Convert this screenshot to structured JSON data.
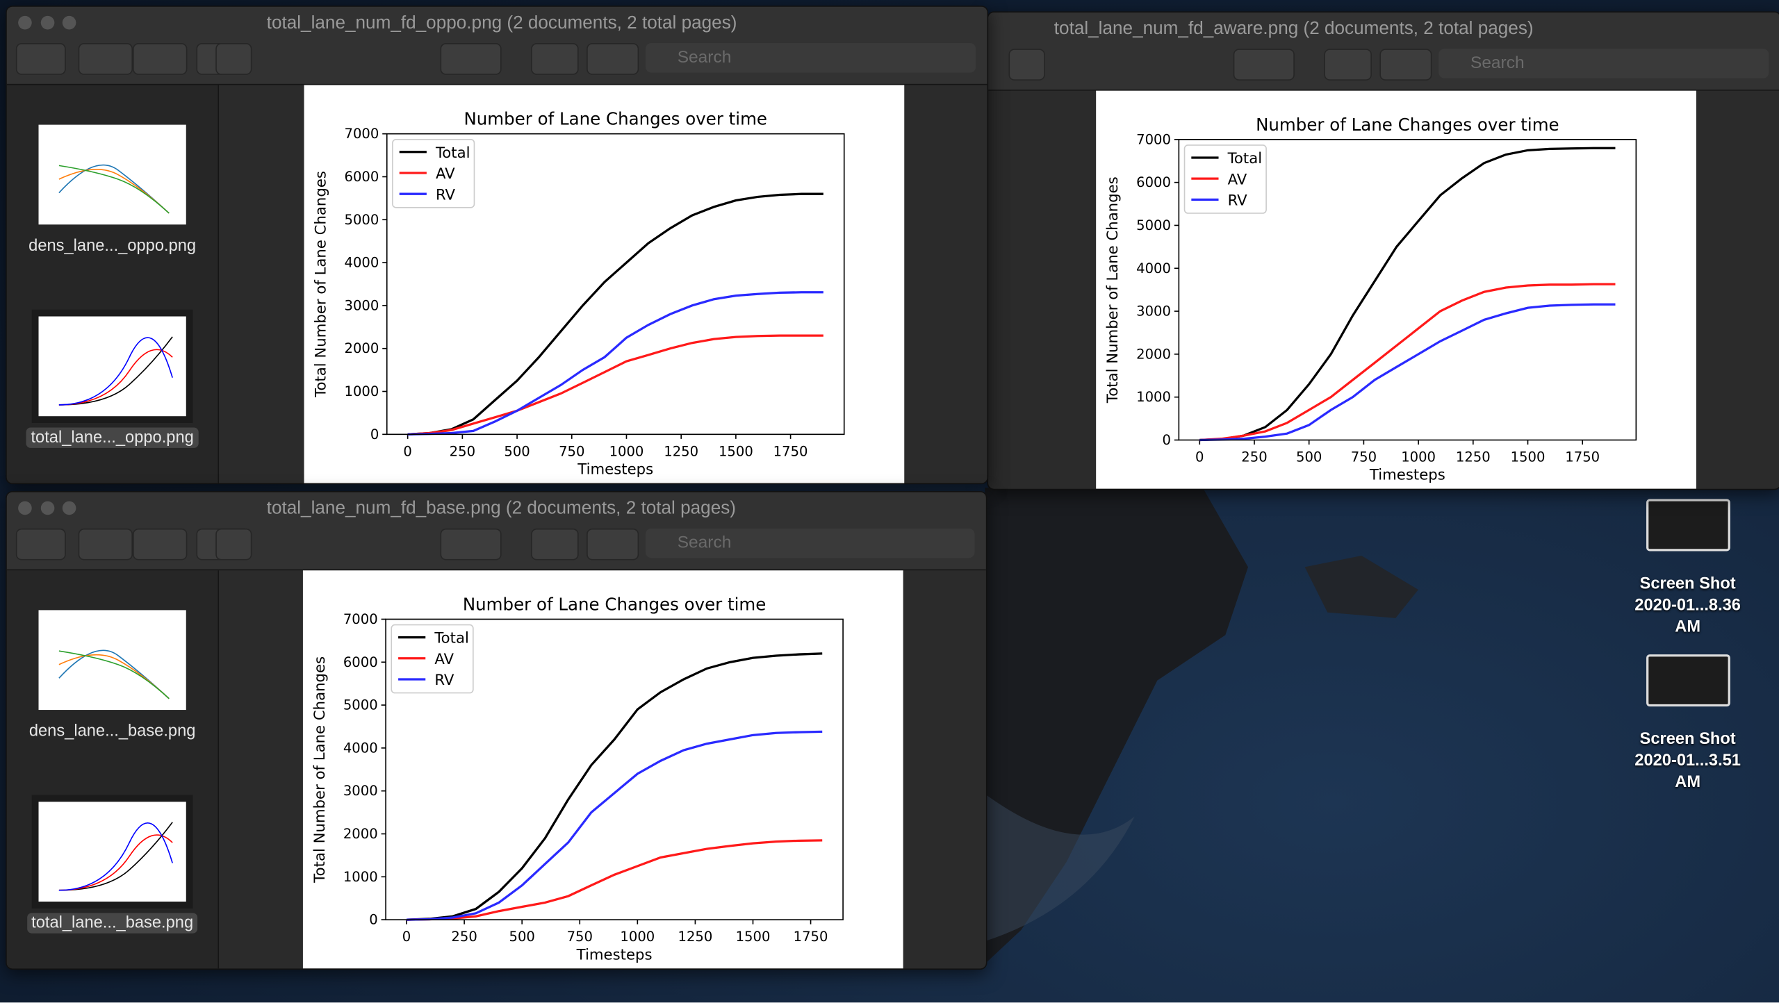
{
  "windows": [
    {
      "title": "total_lane_num_fd_oppo.png (2 documents, 2 total pages)",
      "search": "Search",
      "sidebar": [
        "dens_lane..._oppo.png",
        "total_lane..._oppo.png"
      ]
    },
    {
      "title": "total_lane_num_fd_aware.png (2 documents, 2 total pages)",
      "search": "Search"
    },
    {
      "title": "total_lane_num_fd_base.png (2 documents, 2 total pages)",
      "search": "Search",
      "sidebar": [
        "dens_lane..._base.png",
        "total_lane..._base.png"
      ]
    }
  ],
  "desktop_icons": [
    {
      "name": "Screen Shot",
      "detail": "2020-01...8.36 AM"
    },
    {
      "name": "Screen Shot",
      "detail": "2020-01...3.51 AM"
    }
  ],
  "chart_data": [
    {
      "type": "line",
      "title": "Number of Lane Changes over time",
      "x_label": "Timesteps",
      "y_label": "Total Number of Lane Changes",
      "x": [
        0,
        100,
        200,
        300,
        400,
        500,
        600,
        700,
        800,
        900,
        1000,
        1100,
        1200,
        1300,
        1400,
        1500,
        1600,
        1700,
        1800,
        1900
      ],
      "series": [
        {
          "name": "Total",
          "color": "#000000",
          "values": [
            0,
            30,
            120,
            350,
            800,
            1250,
            1800,
            2400,
            3000,
            3550,
            4000,
            4450,
            4800,
            5100,
            5300,
            5450,
            5530,
            5580,
            5600,
            5600
          ]
        },
        {
          "name": "AV",
          "color": "#ff1a1a",
          "values": [
            0,
            30,
            100,
            250,
            400,
            550,
            750,
            950,
            1200,
            1450,
            1700,
            1850,
            2000,
            2130,
            2220,
            2270,
            2290,
            2300,
            2300,
            2300
          ]
        },
        {
          "name": "RV",
          "color": "#2a2aff",
          "values": [
            0,
            10,
            30,
            80,
            300,
            550,
            850,
            1150,
            1500,
            1800,
            2250,
            2550,
            2800,
            3000,
            3150,
            3230,
            3270,
            3300,
            3310,
            3310
          ]
        }
      ],
      "xlim": [
        -95,
        1995
      ],
      "ylim": [
        0,
        7000
      ],
      "xticks": [
        0,
        250,
        500,
        750,
        1000,
        1250,
        1500,
        1750
      ],
      "yticks": [
        0,
        1000,
        2000,
        3000,
        4000,
        5000,
        6000,
        7000
      ],
      "legend": "upper left"
    },
    {
      "type": "line",
      "title": "Number of Lane Changes over time",
      "x_label": "Timesteps",
      "y_label": "Total Number of Lane Changes",
      "x": [
        0,
        100,
        200,
        300,
        400,
        500,
        600,
        700,
        800,
        900,
        1000,
        1100,
        1200,
        1300,
        1400,
        1500,
        1600,
        1700,
        1800,
        1900
      ],
      "series": [
        {
          "name": "Total",
          "color": "#000000",
          "values": [
            0,
            20,
            100,
            300,
            700,
            1300,
            2000,
            2900,
            3700,
            4500,
            5100,
            5700,
            6100,
            6450,
            6650,
            6750,
            6780,
            6790,
            6800,
            6800
          ]
        },
        {
          "name": "AV",
          "color": "#ff1a1a",
          "values": [
            0,
            30,
            100,
            200,
            400,
            700,
            1000,
            1400,
            1800,
            2200,
            2600,
            3000,
            3250,
            3450,
            3550,
            3600,
            3620,
            3620,
            3630,
            3630
          ]
        },
        {
          "name": "RV",
          "color": "#2a2aff",
          "values": [
            0,
            10,
            30,
            80,
            150,
            350,
            700,
            1000,
            1400,
            1700,
            2000,
            2300,
            2550,
            2800,
            2950,
            3080,
            3130,
            3150,
            3160,
            3160
          ]
        }
      ],
      "xlim": [
        -95,
        1995
      ],
      "ylim": [
        0,
        7000
      ],
      "xticks": [
        0,
        250,
        500,
        750,
        1000,
        1250,
        1500,
        1750
      ],
      "yticks": [
        0,
        1000,
        2000,
        3000,
        4000,
        5000,
        6000,
        7000
      ],
      "legend": "upper left"
    },
    {
      "type": "line",
      "title": "Number of Lane Changes over time",
      "x_label": "Timesteps",
      "y_label": "Total Number of Lane Changes",
      "x": [
        0,
        100,
        200,
        300,
        400,
        500,
        600,
        700,
        800,
        900,
        1000,
        1100,
        1200,
        1300,
        1400,
        1500,
        1600,
        1700,
        1800
      ],
      "series": [
        {
          "name": "Total",
          "color": "#000000",
          "values": [
            0,
            20,
            80,
            250,
            650,
            1200,
            1900,
            2800,
            3600,
            4200,
            4900,
            5300,
            5600,
            5850,
            6000,
            6100,
            6150,
            6180,
            6200
          ]
        },
        {
          "name": "AV",
          "color": "#ff1a1a",
          "values": [
            0,
            10,
            30,
            80,
            200,
            300,
            400,
            550,
            800,
            1050,
            1250,
            1450,
            1550,
            1650,
            1720,
            1780,
            1820,
            1840,
            1850
          ]
        },
        {
          "name": "RV",
          "color": "#2a2aff",
          "values": [
            0,
            10,
            50,
            150,
            400,
            800,
            1300,
            1800,
            2500,
            2950,
            3400,
            3700,
            3950,
            4100,
            4200,
            4300,
            4350,
            4370,
            4380
          ]
        }
      ],
      "xlim": [
        -90,
        1890
      ],
      "ylim": [
        0,
        7000
      ],
      "xticks": [
        0,
        250,
        500,
        750,
        1000,
        1250,
        1500,
        1750
      ],
      "yticks": [
        0,
        1000,
        2000,
        3000,
        4000,
        5000,
        6000,
        7000
      ],
      "legend": "upper left"
    }
  ]
}
